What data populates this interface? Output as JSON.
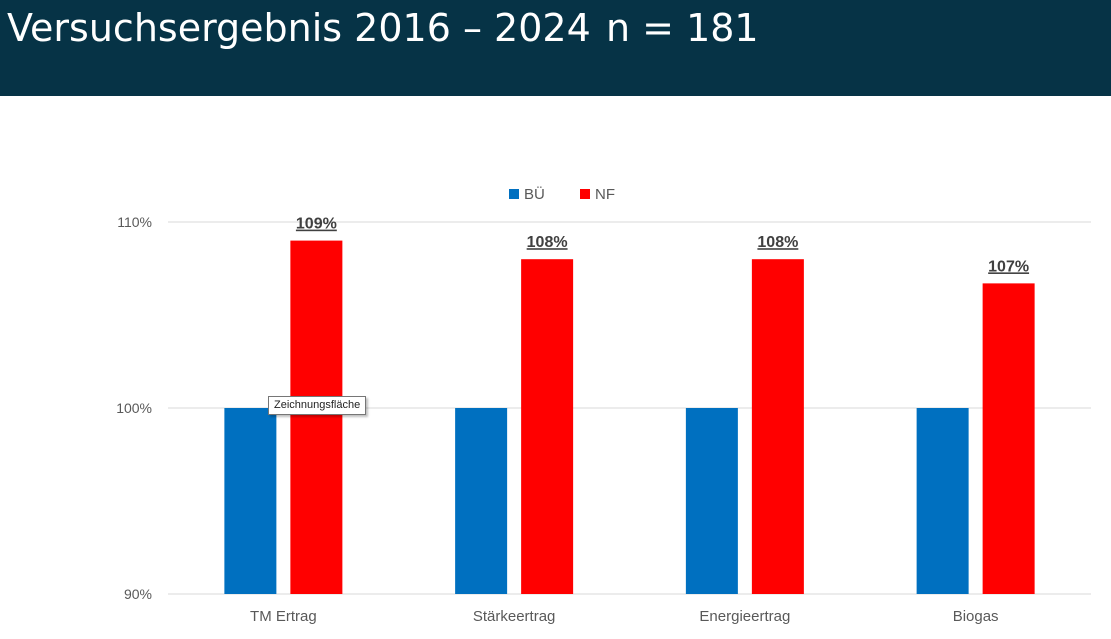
{
  "header": {
    "title": "Versuchsergebnis 2016 – 2024",
    "n_label": "n = 181"
  },
  "tooltip": "Zeichnungsfläche",
  "colors": {
    "header_bg": "#063346",
    "series_bu": "#0070C0",
    "series_nf": "#FF0000",
    "axis_text": "#595959",
    "label_text": "#404040",
    "grid": "#D9D9D9"
  },
  "chart_data": {
    "type": "bar",
    "title": "",
    "xlabel": "",
    "ylabel": "",
    "categories": [
      "TM Ertrag",
      "Stärkeertrag",
      "Energieertrag",
      "Biogas"
    ],
    "ylim": [
      90,
      110
    ],
    "yticks": [
      90,
      100,
      110
    ],
    "ytick_labels": [
      "90%",
      "100%",
      "110%"
    ],
    "grid": true,
    "legend_position": "top-center",
    "series": [
      {
        "name": "BÜ",
        "color": "#0070C0",
        "values": [
          100,
          100,
          100,
          100
        ],
        "labels": [
          "",
          "",
          "",
          ""
        ]
      },
      {
        "name": "NF",
        "color": "#FF0000",
        "values": [
          109,
          108,
          108,
          106.7
        ],
        "labels": [
          "109%",
          "108%",
          "108%",
          "107%"
        ]
      }
    ]
  }
}
